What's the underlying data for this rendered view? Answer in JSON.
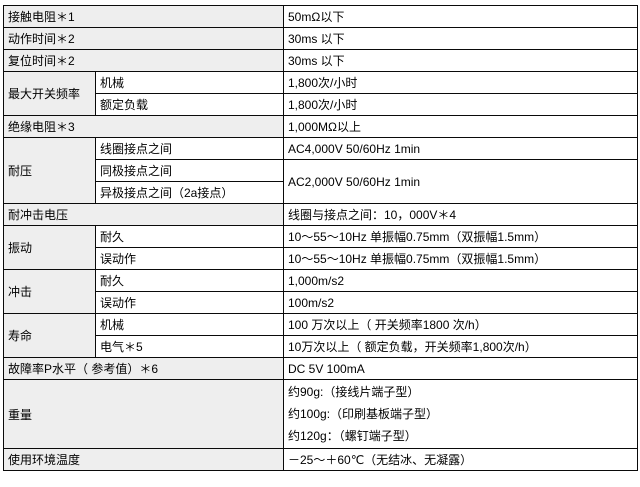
{
  "colors": {
    "page_background": "#ffffff",
    "label_cell_background": "#eeeeee",
    "value_cell_background": "#ffffff",
    "border": "#0a0a0a",
    "text": "#000000"
  },
  "table": {
    "columns": [
      "item-group",
      "item-sub",
      "value"
    ],
    "rows": [
      {
        "cells": [
          {
            "kind": "h",
            "colspan": 2,
            "text": "接触电阻＊1"
          },
          {
            "kind": "v",
            "text": "50mΩ以下"
          }
        ]
      },
      {
        "cells": [
          {
            "kind": "h",
            "colspan": 2,
            "text": "动作时间＊2"
          },
          {
            "kind": "v",
            "text": "30ms 以下"
          }
        ]
      },
      {
        "cells": [
          {
            "kind": "h",
            "colspan": 2,
            "text": "复位时间＊2"
          },
          {
            "kind": "v",
            "text": "30ms 以下"
          }
        ]
      },
      {
        "cells": [
          {
            "kind": "h",
            "rowspan": 2,
            "text": "最大开关频率"
          },
          {
            "kind": "s",
            "text": "机械"
          },
          {
            "kind": "v",
            "text": "1,800次/小时"
          }
        ]
      },
      {
        "cells": [
          {
            "kind": "s",
            "text": "额定负载"
          },
          {
            "kind": "v",
            "text": "1,800次/小时"
          }
        ]
      },
      {
        "cells": [
          {
            "kind": "h",
            "colspan": 2,
            "text": "绝缘电阻＊3"
          },
          {
            "kind": "v",
            "text": "1,000MΩ以上"
          }
        ]
      },
      {
        "cells": [
          {
            "kind": "h",
            "rowspan": 3,
            "text": "耐压"
          },
          {
            "kind": "s",
            "text": "线圈接点之间"
          },
          {
            "kind": "v",
            "text": "AC4,000V 50/60Hz 1min"
          }
        ]
      },
      {
        "cells": [
          {
            "kind": "s",
            "text": "同极接点之间"
          },
          {
            "kind": "v",
            "rowspan": 2,
            "text": "AC2,000V 50/60Hz 1min"
          }
        ]
      },
      {
        "cells": [
          {
            "kind": "s",
            "text": "异极接点之间（2a接点）"
          }
        ]
      },
      {
        "cells": [
          {
            "kind": "h",
            "colspan": 2,
            "text": "耐冲击电压"
          },
          {
            "kind": "v",
            "text": "线圈与接点之间：10，000V＊4"
          }
        ]
      },
      {
        "cells": [
          {
            "kind": "h",
            "rowspan": 2,
            "text": "振动"
          },
          {
            "kind": "s",
            "text": "耐久"
          },
          {
            "kind": "v",
            "text": "10～55～10Hz 单振幅0.75mm（双振幅1.5mm）"
          }
        ]
      },
      {
        "cells": [
          {
            "kind": "s",
            "text": "误动作"
          },
          {
            "kind": "v",
            "text": "10～55～10Hz 单振幅0.75mm（双振幅1.5mm）"
          }
        ]
      },
      {
        "cells": [
          {
            "kind": "h",
            "rowspan": 2,
            "text": "冲击"
          },
          {
            "kind": "s",
            "text": "耐久"
          },
          {
            "kind": "v",
            "text": "1,000m/s2"
          }
        ]
      },
      {
        "cells": [
          {
            "kind": "s",
            "text": "误动作"
          },
          {
            "kind": "v",
            "text": "100m/s2"
          }
        ]
      },
      {
        "cells": [
          {
            "kind": "h",
            "rowspan": 2,
            "text": "寿命"
          },
          {
            "kind": "s",
            "text": "机械"
          },
          {
            "kind": "v",
            "text": "100 万次以上（ 开关频率1800 次/h）"
          }
        ]
      },
      {
        "cells": [
          {
            "kind": "s",
            "text": "电气＊5"
          },
          {
            "kind": "v",
            "text": "10万次以上（ 额定负载，开关频率1,800次/h）"
          }
        ]
      },
      {
        "cells": [
          {
            "kind": "h",
            "colspan": 2,
            "text": "故障率P水平（ 参考值）＊6"
          },
          {
            "kind": "v",
            "text": "DC 5V 100mA"
          }
        ]
      },
      {
        "cells": [
          {
            "kind": "h",
            "colspan": 2,
            "text": "重量"
          },
          {
            "kind": "v",
            "lines": [
              "约90g:（接线片端子型）",
              "约100g:（印刷基板端子型）",
              "约120g：（螺钉端子型）"
            ]
          }
        ]
      },
      {
        "cells": [
          {
            "kind": "h",
            "colspan": 2,
            "text": "使用环境温度"
          },
          {
            "kind": "v",
            "text": "－25～＋60℃（无结冰、无凝露）"
          }
        ]
      }
    ]
  }
}
